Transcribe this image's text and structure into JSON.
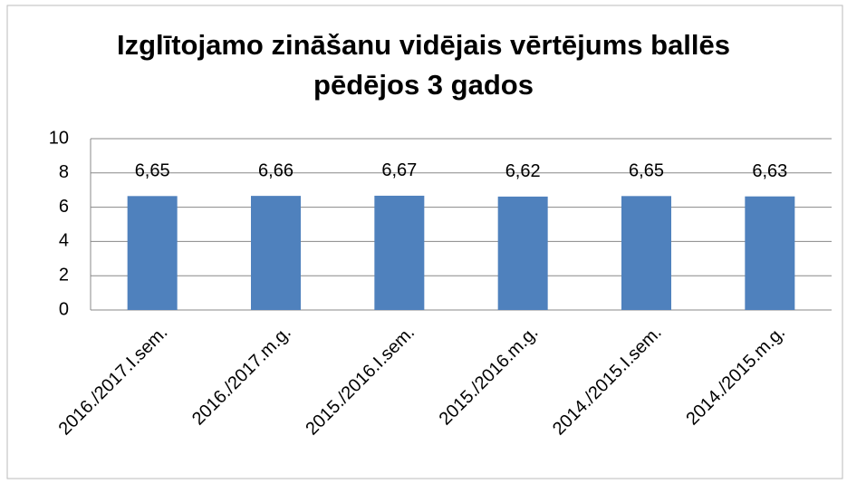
{
  "chart_data": {
    "type": "bar",
    "title": "Izglītojamo zināšanu vidējais vērtējums ballēs pēdējos 3 gados",
    "categories": [
      "2016./2017.I.sem.",
      "2016./2017.m.g.",
      "2015./2016.I.sem.",
      "2015./2016.m.g.",
      "2014./2015.I.sem.",
      "2014./2015.m.g."
    ],
    "values": [
      6.65,
      6.66,
      6.67,
      6.62,
      6.65,
      6.63
    ],
    "value_labels": [
      "6,65",
      "6,66",
      "6,67",
      "6,62",
      "6,65",
      "6,63"
    ],
    "color": "#4f81bd",
    "ylim": [
      0,
      10
    ],
    "yticks": [
      0,
      2,
      4,
      6,
      8,
      10
    ],
    "grid": true
  }
}
